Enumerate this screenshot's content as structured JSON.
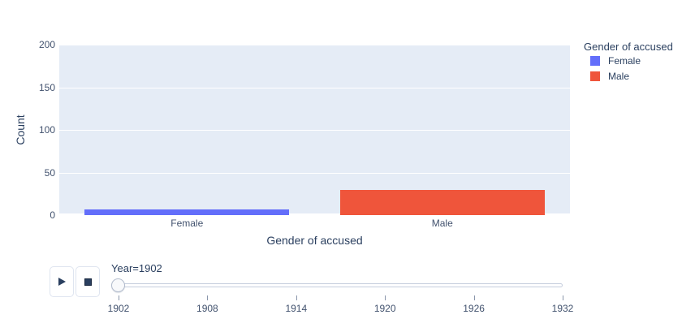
{
  "chart_data": {
    "type": "bar",
    "title": "",
    "categories": [
      "Female",
      "Male"
    ],
    "series": [
      {
        "name": "Female",
        "value": 7,
        "color": "#636EFA"
      },
      {
        "name": "Male",
        "value": 30,
        "color": "#EF553B"
      }
    ],
    "xlabel": "Gender of accused",
    "ylabel": "Count",
    "ylim": [
      0,
      200
    ],
    "yticks": [
      0,
      50,
      100,
      150,
      200
    ],
    "grid": true,
    "plot_bgcolor": "#E5ECF6",
    "grid_color": "#FFFFFF",
    "legend": {
      "title": "Gender of accused",
      "position": "right",
      "entries": [
        {
          "label": "Female",
          "color": "#636EFA",
          "swatch_icon": "square-swatch-icon"
        },
        {
          "label": "Male",
          "color": "#EF553B",
          "swatch_icon": "square-swatch-icon"
        }
      ]
    }
  },
  "controls": {
    "buttons": [
      {
        "name": "play",
        "icon": "play-icon"
      },
      {
        "name": "stop",
        "icon": "stop-icon"
      }
    ]
  },
  "slider": {
    "label": "Year=1902",
    "current_value": "1902",
    "ticks": [
      "1902",
      "1908",
      "1914",
      "1920",
      "1926",
      "1932"
    ]
  }
}
